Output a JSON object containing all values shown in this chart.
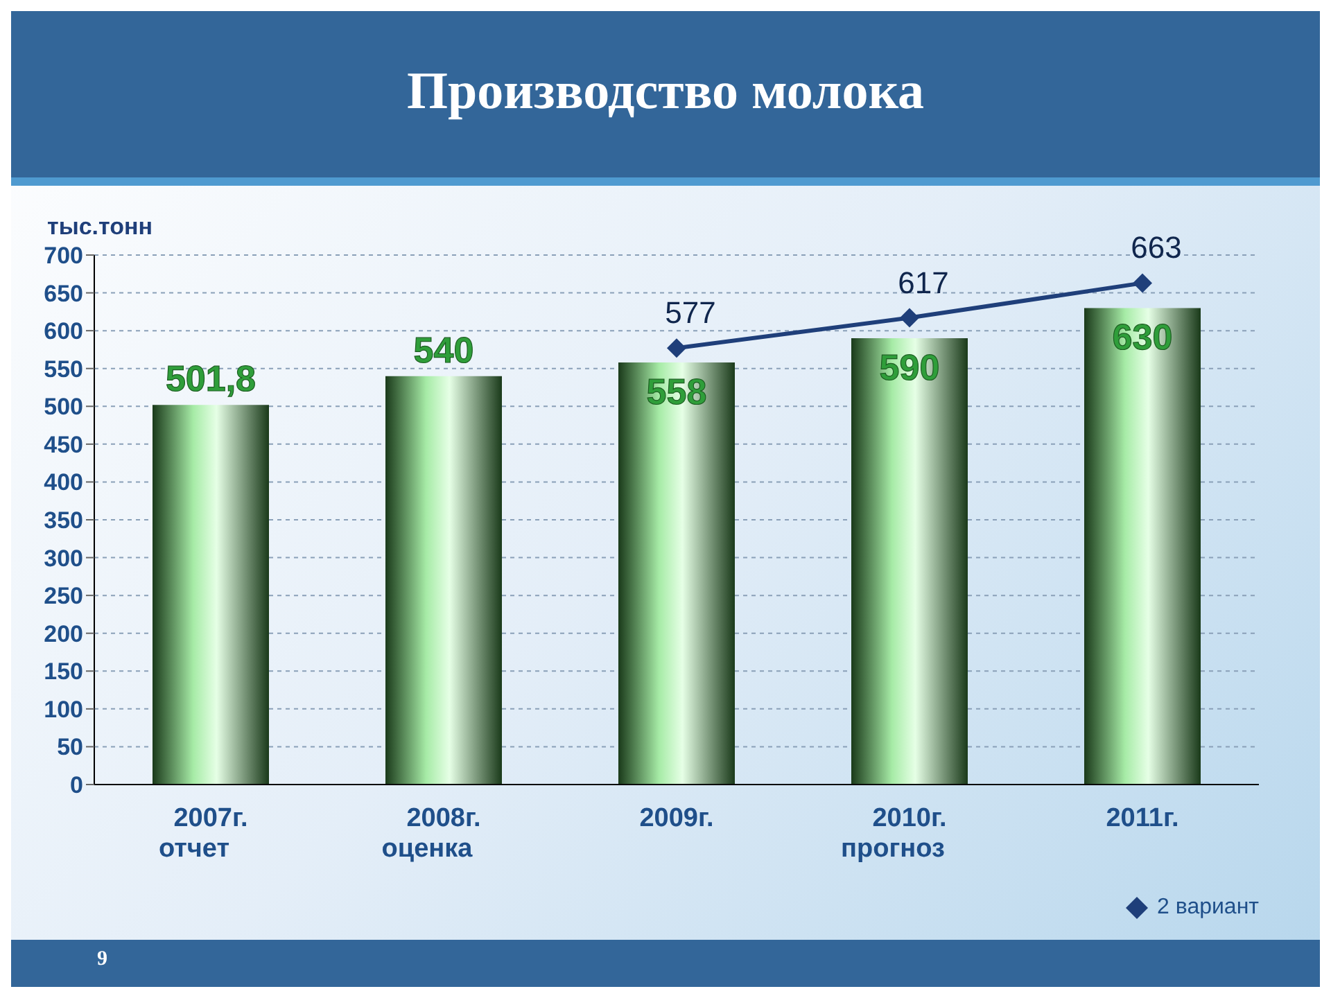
{
  "chart_data": {
    "type": "bar",
    "title": "Производство молока",
    "ylabel": "тыс.тонн",
    "categories": [
      "2007г.\nотчет",
      "2008г.\nоценка",
      "2009г.",
      "2010г.\nпрогноз",
      "2011г."
    ],
    "series": [
      {
        "color": "#a6eba6",
        "values": [
          501.8,
          540,
          558,
          590,
          630
        ],
        "value_labels": [
          "501,8",
          "540",
          "558",
          "590",
          "630"
        ]
      },
      {
        "type": "line",
        "name": "2 вариант",
        "color": "#1f3f7a",
        "values": [
          null,
          null,
          577,
          617,
          663
        ]
      }
    ],
    "ylim": [
      0,
      700
    ],
    "yticks": [
      0,
      50,
      100,
      150,
      200,
      250,
      300,
      350,
      400,
      450,
      500,
      550,
      600,
      650,
      700
    ],
    "grid": "y",
    "legend": "bottom right",
    "marker": "diamond",
    "line_style": "solid",
    "data_labels": true,
    "annotations": [
      "9"
    ]
  }
}
